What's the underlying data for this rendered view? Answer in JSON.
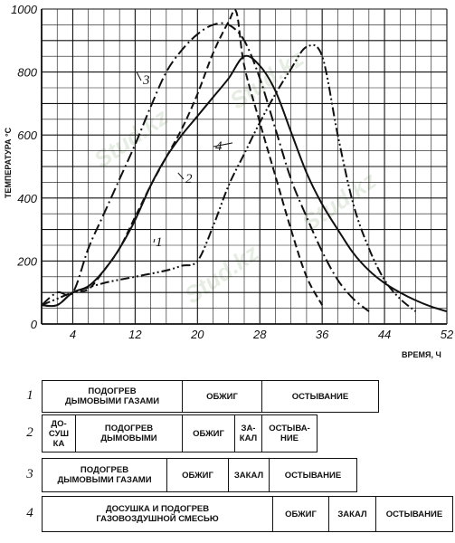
{
  "chart_data": {
    "type": "line",
    "title": "",
    "xlabel": "ВРЕМЯ, Ч",
    "ylabel": "ТЕМПЕРАТУРА °С",
    "xlim": [
      0,
      52
    ],
    "ylim": [
      0,
      1000
    ],
    "x_ticks": [
      0,
      4,
      12,
      20,
      28,
      36,
      44,
      52
    ],
    "x_tick_labels": [
      "0",
      "4",
      "12",
      "20",
      "28",
      "36",
      "44",
      "52"
    ],
    "y_ticks": [
      0,
      200,
      400,
      600,
      800,
      1000
    ],
    "y_tick_labels": [
      "0",
      "200",
      "400",
      "600",
      "800",
      "1000"
    ],
    "grid": true,
    "series": [
      {
        "label": "1",
        "style": "solid",
        "x": [
          0,
          2,
          4,
          6,
          8,
          10,
          12,
          14,
          16,
          18,
          20,
          22,
          24,
          26,
          28,
          30,
          32,
          34,
          36,
          38,
          40,
          42,
          44,
          46,
          48,
          50,
          52
        ],
        "y": [
          60,
          60,
          100,
          120,
          170,
          240,
          330,
          440,
          530,
          600,
          660,
          720,
          780,
          850,
          820,
          740,
          610,
          480,
          380,
          300,
          225,
          170,
          130,
          100,
          75,
          55,
          40
        ]
      },
      {
        "label": "2",
        "style": "dashed",
        "x": [
          0,
          2,
          4,
          6,
          8,
          10,
          12,
          14,
          16,
          18,
          20,
          22,
          24,
          25,
          26,
          28,
          30,
          32,
          34,
          36
        ],
        "y": [
          60,
          60,
          100,
          110,
          170,
          240,
          340,
          440,
          530,
          620,
          730,
          860,
          960,
          990,
          820,
          640,
          470,
          300,
          150,
          60
        ]
      },
      {
        "label": "3",
        "style": "dash-dot",
        "x": [
          0,
          2,
          4,
          6,
          8,
          10,
          12,
          14,
          16,
          18,
          20,
          22,
          24,
          26,
          28,
          30,
          32,
          34,
          36,
          38,
          40,
          42
        ],
        "y": [
          60,
          100,
          100,
          240,
          350,
          460,
          570,
          690,
          800,
          870,
          920,
          950,
          950,
          900,
          780,
          620,
          460,
          340,
          230,
          140,
          80,
          40
        ]
      },
      {
        "label": "4",
        "style": "dash-dot-dot",
        "x": [
          0,
          2,
          4,
          8,
          12,
          16,
          18,
          20,
          22,
          24,
          26,
          28,
          30,
          32,
          34,
          36,
          38,
          40,
          42,
          44,
          46,
          48
        ],
        "y": [
          60,
          80,
          100,
          130,
          150,
          170,
          185,
          200,
          310,
          440,
          540,
          640,
          730,
          810,
          880,
          850,
          600,
          380,
          240,
          140,
          80,
          40
        ]
      }
    ]
  },
  "watermark": "Stud.kz",
  "schedule": [
    {
      "num": "1",
      "segments": [
        {
          "label": "ПОДОГРЕВ\nДЫМОВЫМИ ГАЗАМИ",
          "w": 155
        },
        {
          "label": "ОБЖИГ",
          "w": 88
        },
        {
          "label": "ОСТЫВАНИЕ",
          "w": 128
        }
      ]
    },
    {
      "num": "2",
      "segments": [
        {
          "label": "ДО-\nСУШ\nКА",
          "w": 37
        },
        {
          "label": "ПОДОГРЕВ\nДЫМОВЫМИ",
          "w": 118
        },
        {
          "label": "ОБЖИГ",
          "w": 58
        },
        {
          "label": "ЗА-\nКАЛ",
          "w": 30
        },
        {
          "label": "ОСТЫВА-\nНИЕ",
          "w": 60
        }
      ]
    },
    {
      "num": "3",
      "segments": [
        {
          "label": "ПОДОГРЕВ\nДЫМОВЫМИ ГАЗАМИ",
          "w": 138
        },
        {
          "label": "ОБЖИГ",
          "w": 68
        },
        {
          "label": "ЗАКАЛ",
          "w": 45
        },
        {
          "label": "ОСТЫВАНИЕ",
          "w": 96
        }
      ]
    },
    {
      "num": "4",
      "segments": [
        {
          "label": "ДОСУШКА И ПОДОГРЕВ\nГАЗОВОЗДУШНОЙ СМЕСЬЮ",
          "w": 255
        },
        {
          "label": "ОБЖИГ",
          "w": 62
        },
        {
          "label": "ЗАКАЛ",
          "w": 52
        },
        {
          "label": "ОСТЫВАНИЕ",
          "w": 84
        }
      ]
    }
  ]
}
